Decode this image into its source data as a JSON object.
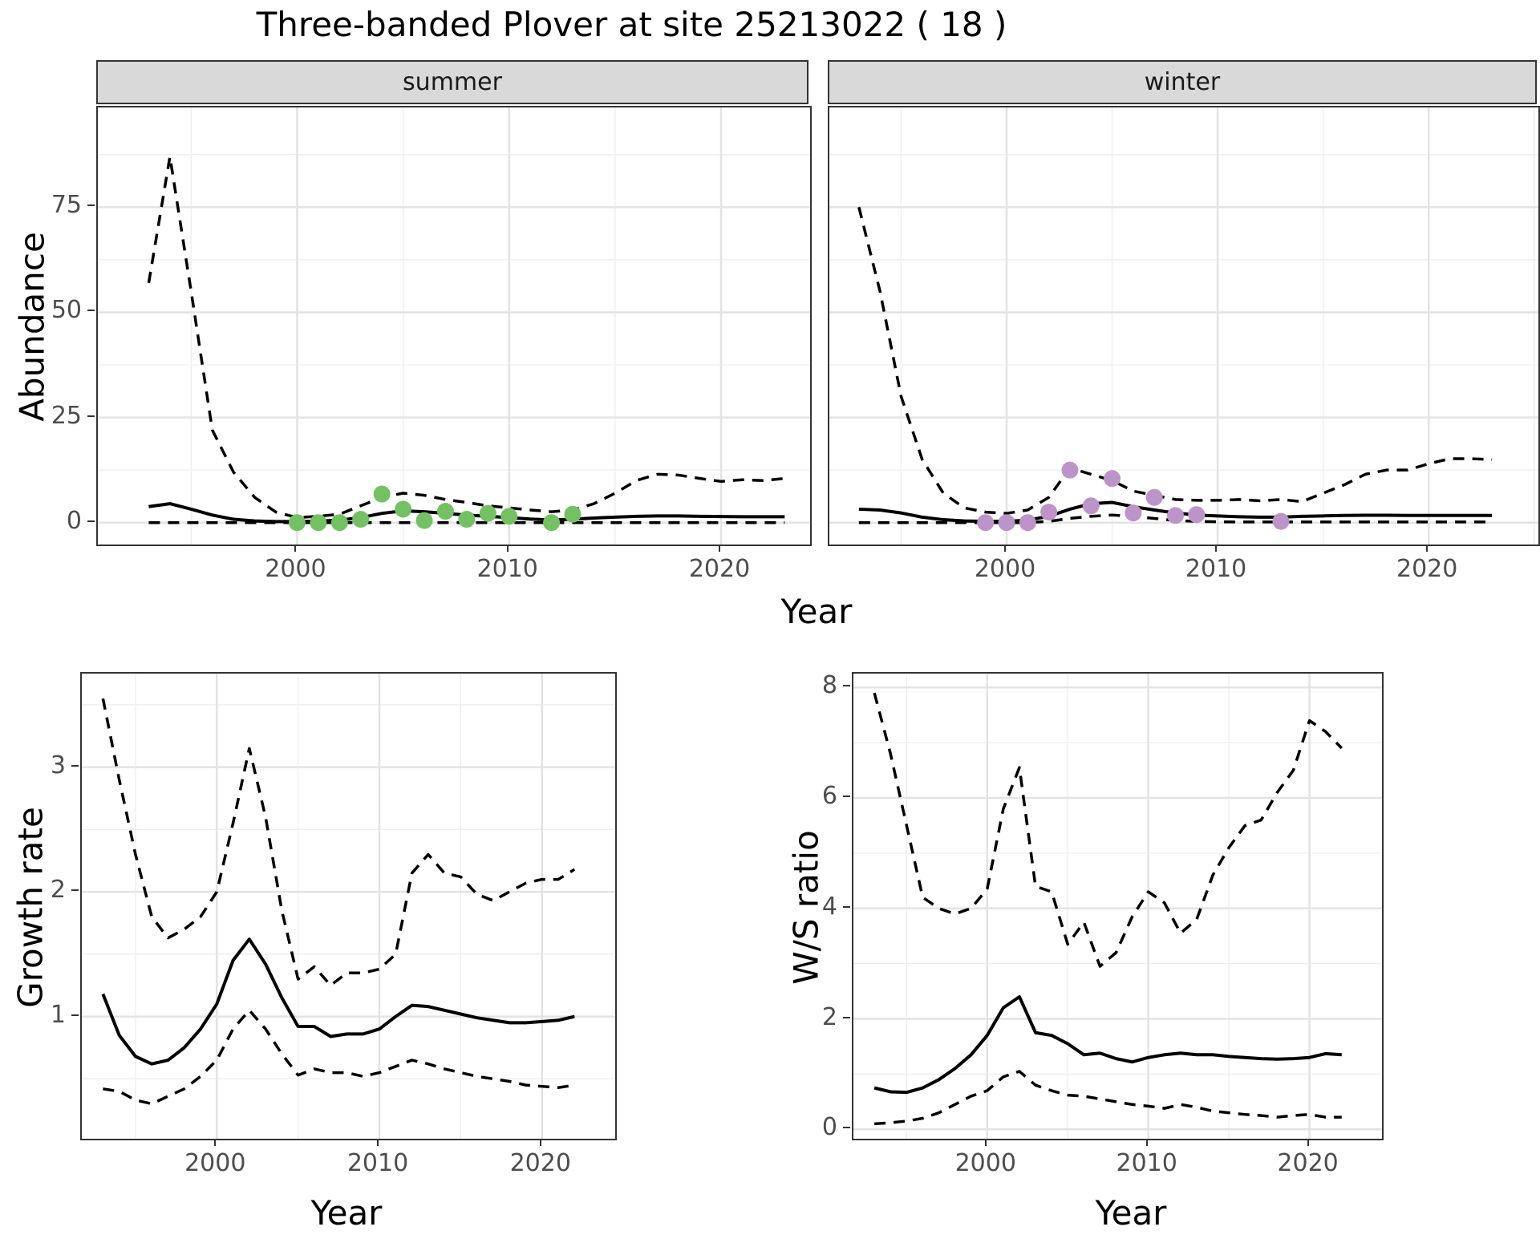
{
  "title": "Three-banded Plover at site 25213022 ( 18 )",
  "labels": {
    "year": "Year",
    "abundance": "Abundance",
    "growth_rate": "Growth rate",
    "ws_ratio": "W/S ratio"
  },
  "theme": {
    "background": "#ffffff",
    "panel_border": "#333333",
    "strip_bg": "#d9d9d9",
    "grid_major": "#e3e3e3",
    "grid_minor": "#efefef",
    "line_color": "#000000",
    "tick_label_color": "#4d4d4d",
    "summer_point_color": "#74c163",
    "winter_point_color": "#bd94c9"
  },
  "chart_data": [
    {
      "id": "abundance-summer",
      "type": "line",
      "facet_label": "summer",
      "xlabel": "Year",
      "ylabel": "Abundance",
      "x": [
        1993,
        1994,
        1995,
        1996,
        1997,
        1998,
        1999,
        2000,
        2001,
        2002,
        2003,
        2004,
        2005,
        2006,
        2007,
        2008,
        2009,
        2010,
        2011,
        2012,
        2013,
        2014,
        2015,
        2016,
        2017,
        2018,
        2019,
        2020,
        2021,
        2022,
        2023
      ],
      "series": [
        {
          "name": "upper_ci",
          "style": "dashed",
          "values": [
            57,
            87,
            55,
            22,
            12,
            6,
            2.5,
            1.2,
            1.5,
            2,
            4,
            6,
            7,
            6.5,
            5.5,
            4.8,
            4,
            3.5,
            3,
            2.6,
            3,
            4.5,
            7,
            10,
            11.5,
            11.3,
            10.5,
            9.8,
            10.2,
            10,
            10.5
          ]
        },
        {
          "name": "mean",
          "style": "solid",
          "values": [
            3.8,
            4.5,
            3.2,
            1.8,
            0.8,
            0.4,
            0.25,
            0.25,
            0.35,
            0.6,
            1.2,
            2.2,
            2.8,
            2.6,
            2.2,
            1.8,
            1.5,
            1.2,
            0.85,
            0.65,
            0.8,
            1.1,
            1.3,
            1.5,
            1.6,
            1.6,
            1.5,
            1.45,
            1.4,
            1.4,
            1.4
          ]
        },
        {
          "name": "lower_ci",
          "style": "dashed",
          "values": [
            0,
            0,
            0,
            0,
            0,
            0,
            0,
            0,
            0,
            0,
            0,
            0,
            0,
            0,
            0,
            0,
            0,
            0,
            0,
            0,
            0,
            0,
            0,
            0,
            0,
            0,
            0,
            0,
            0,
            0,
            0
          ]
        }
      ],
      "points": {
        "name": "observed-counts-summer",
        "color": "#74c163",
        "x": [
          2000,
          2001,
          2002,
          2003,
          2004,
          2005,
          2006,
          2007,
          2008,
          2009,
          2010,
          2012,
          2013
        ],
        "y": [
          0,
          0,
          0,
          0.8,
          6.8,
          3.2,
          0.5,
          2.7,
          0.8,
          2.2,
          1.5,
          0,
          2
        ]
      },
      "x_ticks": [
        2000,
        2010,
        2020
      ],
      "y_ticks": [
        0,
        25,
        50,
        75
      ],
      "x_minor": [
        1995,
        2005,
        2015,
        2025
      ],
      "y_minor": [
        12.5,
        37.5,
        62.5,
        87.5
      ],
      "xlim": [
        1990.6,
        2024.2
      ],
      "ylim": [
        -5.2,
        98.7
      ]
    },
    {
      "id": "abundance-winter",
      "type": "line",
      "facet_label": "winter",
      "xlabel": "Year",
      "ylabel": "Abundance",
      "x": [
        1993,
        1994,
        1995,
        1996,
        1997,
        1998,
        1999,
        2000,
        2001,
        2002,
        2003,
        2004,
        2005,
        2006,
        2007,
        2008,
        2009,
        2010,
        2011,
        2012,
        2013,
        2014,
        2015,
        2016,
        2017,
        2018,
        2019,
        2020,
        2021,
        2022,
        2023
      ],
      "series": [
        {
          "name": "upper_ci",
          "style": "dashed",
          "values": [
            75,
            55,
            30,
            15,
            7,
            3.5,
            2.5,
            2.2,
            3,
            6,
            13,
            11.5,
            10,
            7.5,
            6.5,
            5.5,
            5.3,
            5.3,
            5.5,
            5.2,
            5.5,
            5,
            7,
            9,
            11.5,
            12.5,
            12.5,
            14,
            15.2,
            15.2,
            15
          ]
        },
        {
          "name": "mean",
          "style": "solid",
          "values": [
            3.2,
            3.0,
            2.3,
            1.3,
            0.7,
            0.4,
            0.3,
            0.3,
            0.6,
            1.5,
            3.2,
            4.5,
            4.8,
            3.8,
            3,
            2.3,
            1.8,
            1.6,
            1.4,
            1.3,
            1.3,
            1.5,
            1.6,
            1.7,
            1.75,
            1.75,
            1.7,
            1.7,
            1.7,
            1.7,
            1.7
          ]
        },
        {
          "name": "lower_ci",
          "style": "dashed",
          "values": [
            0,
            0,
            0,
            0,
            0,
            0,
            0,
            0,
            0,
            0.3,
            1,
            1.5,
            1.8,
            1.5,
            1,
            0.5,
            0.3,
            0.2,
            0.15,
            0.15,
            0.15,
            0.15,
            0.15,
            0.15,
            0.15,
            0.15,
            0.15,
            0.15,
            0.15,
            0.15,
            0.15
          ]
        }
      ],
      "points": {
        "name": "observed-counts-winter",
        "color": "#bd94c9",
        "x": [
          1999,
          2000,
          2001,
          2002,
          2003,
          2004,
          2005,
          2006,
          2007,
          2008,
          2009,
          2013
        ],
        "y": [
          0,
          0,
          0,
          2.5,
          12.5,
          4,
          10.5,
          2.3,
          6,
          1.7,
          1.9,
          0.3
        ]
      },
      "x_ticks": [
        2000,
        2010,
        2020
      ],
      "y_ticks": [
        0,
        25,
        50,
        75
      ],
      "x_minor": [
        1995,
        2005,
        2015,
        2025
      ],
      "y_minor": [
        12.5,
        37.5,
        62.5,
        87.5
      ],
      "xlim": [
        1991.6,
        2025.2
      ],
      "ylim": [
        -5.2,
        98.7
      ]
    },
    {
      "id": "growth-rate",
      "type": "line",
      "xlabel": "Year",
      "ylabel": "Growth rate",
      "x": [
        1993,
        1994,
        1995,
        1996,
        1997,
        1998,
        1999,
        2000,
        2001,
        2002,
        2003,
        2004,
        2005,
        2006,
        2007,
        2008,
        2009,
        2010,
        2011,
        2012,
        2013,
        2014,
        2015,
        2016,
        2017,
        2018,
        2019,
        2020,
        2021,
        2022
      ],
      "series": [
        {
          "name": "upper_ci",
          "style": "dashed",
          "values": [
            3.55,
            2.9,
            2.3,
            1.8,
            1.63,
            1.7,
            1.8,
            2.0,
            2.55,
            3.15,
            2.6,
            1.85,
            1.3,
            1.4,
            1.25,
            1.35,
            1.35,
            1.38,
            1.5,
            2.15,
            2.3,
            2.15,
            2.12,
            1.98,
            1.93,
            2.0,
            2.07,
            2.1,
            2.1,
            2.18
          ]
        },
        {
          "name": "mean",
          "style": "solid",
          "values": [
            1.18,
            0.85,
            0.68,
            0.62,
            0.65,
            0.75,
            0.9,
            1.1,
            1.45,
            1.62,
            1.42,
            1.15,
            0.92,
            0.92,
            0.84,
            0.86,
            0.86,
            0.9,
            1.0,
            1.09,
            1.08,
            1.05,
            1.02,
            0.99,
            0.97,
            0.95,
            0.95,
            0.96,
            0.97,
            1.0
          ]
        },
        {
          "name": "lower_ci",
          "style": "dashed",
          "values": [
            0.42,
            0.4,
            0.33,
            0.3,
            0.36,
            0.42,
            0.52,
            0.65,
            0.9,
            1.05,
            0.9,
            0.7,
            0.53,
            0.58,
            0.55,
            0.55,
            0.52,
            0.55,
            0.6,
            0.65,
            0.62,
            0.58,
            0.55,
            0.52,
            0.5,
            0.48,
            0.45,
            0.44,
            0.43,
            0.45
          ]
        }
      ],
      "x_ticks": [
        2000,
        2010,
        2020
      ],
      "y_ticks": [
        1,
        2,
        3
      ],
      "x_minor": [
        1995,
        2005,
        2015,
        2025
      ],
      "y_minor": [
        0.5,
        1.5,
        2.5,
        3.5
      ],
      "xlim": [
        1991.7,
        2024.5
      ],
      "ylim": [
        0.02,
        3.75
      ]
    },
    {
      "id": "ws-ratio",
      "type": "line",
      "xlabel": "Year",
      "ylabel": "W/S ratio",
      "x": [
        1993,
        1994,
        1995,
        1996,
        1997,
        1998,
        1999,
        2000,
        2001,
        2002,
        2003,
        2004,
        2005,
        2006,
        2007,
        2008,
        2009,
        2010,
        2011,
        2012,
        2013,
        2014,
        2015,
        2016,
        2017,
        2018,
        2019,
        2020,
        2021,
        2022
      ],
      "series": [
        {
          "name": "upper_ci",
          "style": "dashed",
          "values": [
            7.9,
            6.8,
            5.5,
            4.2,
            4.0,
            3.9,
            4.0,
            4.35,
            5.8,
            6.55,
            4.4,
            4.3,
            3.35,
            3.75,
            2.95,
            3.2,
            3.85,
            4.3,
            4.1,
            3.55,
            3.8,
            4.6,
            5.1,
            5.5,
            5.6,
            6.1,
            6.5,
            7.4,
            7.2,
            6.9
          ]
        },
        {
          "name": "mean",
          "style": "solid",
          "values": [
            0.75,
            0.68,
            0.67,
            0.75,
            0.9,
            1.1,
            1.35,
            1.7,
            2.2,
            2.4,
            1.75,
            1.7,
            1.55,
            1.35,
            1.38,
            1.28,
            1.22,
            1.3,
            1.35,
            1.38,
            1.35,
            1.35,
            1.32,
            1.3,
            1.28,
            1.27,
            1.28,
            1.3,
            1.37,
            1.35
          ]
        },
        {
          "name": "lower_ci",
          "style": "dashed",
          "values": [
            0.1,
            0.12,
            0.15,
            0.2,
            0.3,
            0.45,
            0.6,
            0.7,
            0.95,
            1.05,
            0.8,
            0.7,
            0.62,
            0.6,
            0.55,
            0.5,
            0.45,
            0.42,
            0.38,
            0.45,
            0.4,
            0.33,
            0.3,
            0.27,
            0.25,
            0.22,
            0.25,
            0.27,
            0.22,
            0.22
          ]
        }
      ],
      "x_ticks": [
        2000,
        2010,
        2020
      ],
      "y_ticks": [
        0,
        2,
        4,
        6,
        8
      ],
      "x_minor": [
        1995,
        2005,
        2015,
        2025
      ],
      "y_minor": [
        1,
        3,
        5,
        7
      ],
      "xlim": [
        1991.7,
        2024.5
      ],
      "ylim": [
        -0.17,
        8.25
      ]
    }
  ]
}
